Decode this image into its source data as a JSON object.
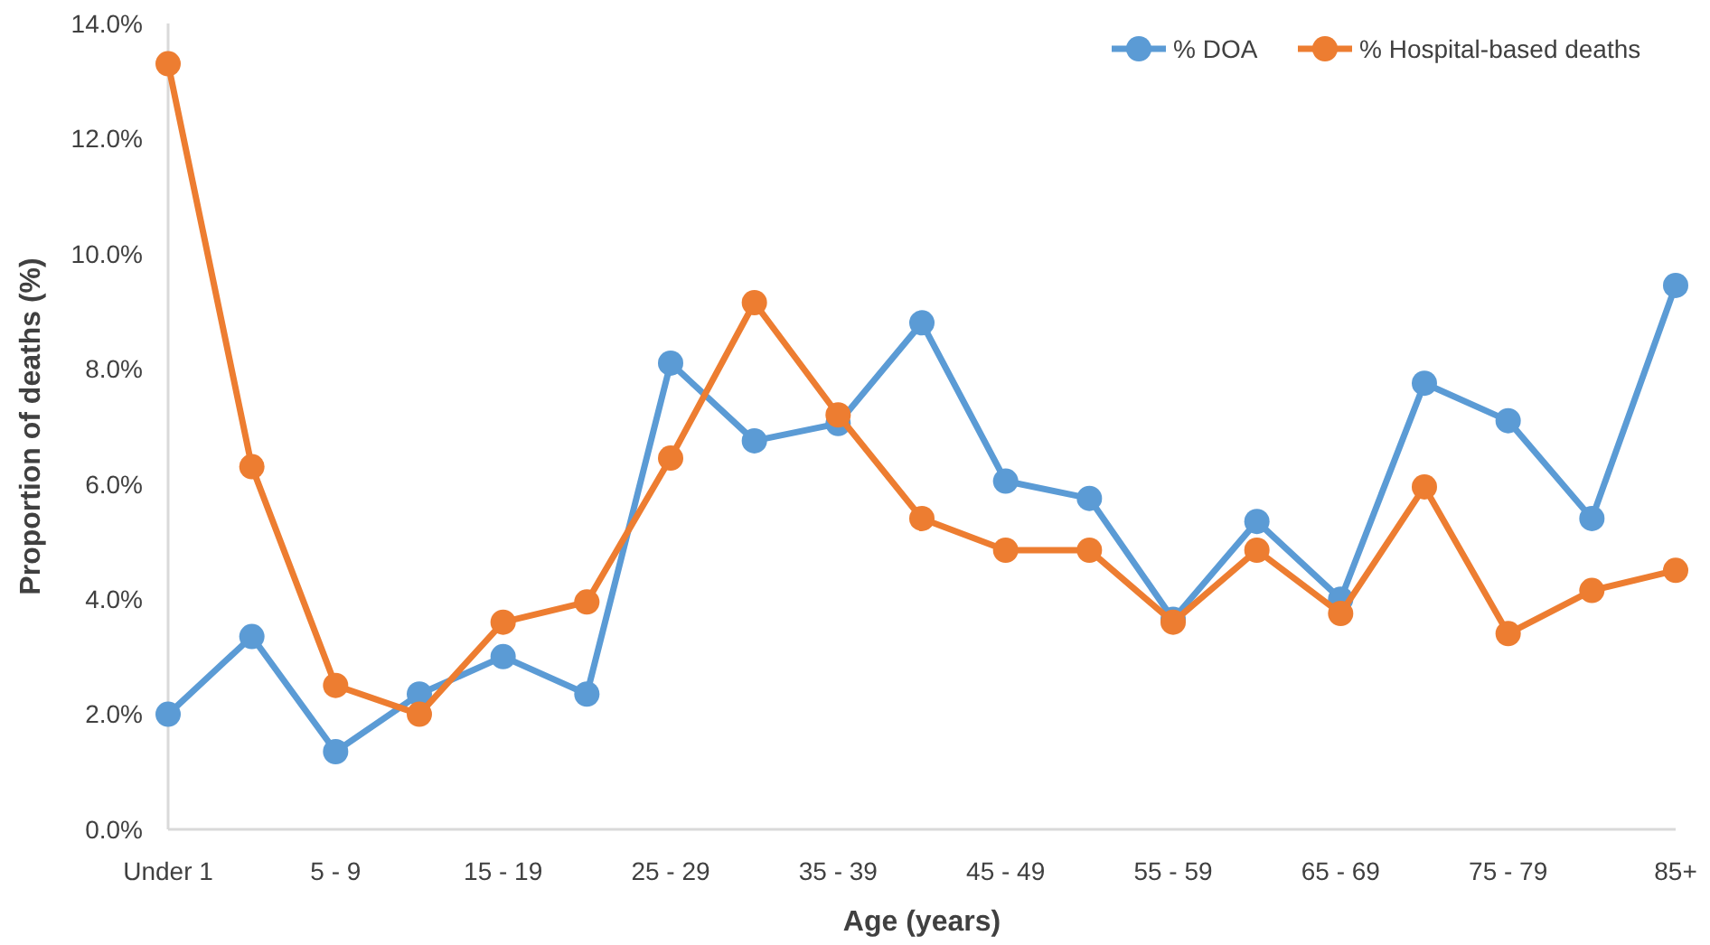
{
  "chart_data": {
    "type": "line",
    "xlabel": "Age (years)",
    "ylabel": "Proportion of deaths (%)",
    "categories": [
      "Under 1",
      null,
      "5 - 9",
      null,
      "15 - 19",
      null,
      "25 - 29",
      null,
      "35 - 39",
      null,
      "45 - 49",
      null,
      "55 - 59",
      null,
      "65 - 69",
      null,
      "75 - 79",
      null,
      "85+"
    ],
    "series": [
      {
        "name": "% DOA",
        "color": "#5b9bd5",
        "values": [
          2.0,
          3.35,
          1.35,
          2.35,
          3.0,
          2.35,
          8.1,
          6.75,
          7.05,
          8.8,
          6.05,
          5.75,
          3.65,
          5.35,
          4.0,
          7.75,
          7.1,
          5.4,
          9.45
        ]
      },
      {
        "name": "% Hospital-based deaths",
        "color": "#ed7d31",
        "values": [
          13.3,
          6.3,
          2.5,
          2.0,
          3.6,
          3.95,
          6.45,
          9.15,
          7.2,
          5.4,
          4.85,
          4.85,
          3.6,
          4.85,
          3.75,
          5.95,
          3.4,
          4.15,
          4.5
        ]
      }
    ],
    "ylim": [
      0,
      14
    ],
    "yticks": [
      {
        "value": 0,
        "label": "0.0%"
      },
      {
        "value": 2,
        "label": "2.0%"
      },
      {
        "value": 4,
        "label": "4.0%"
      },
      {
        "value": 6,
        "label": "6.0%"
      },
      {
        "value": 8,
        "label": "8.0%"
      },
      {
        "value": 10,
        "label": "10.0%"
      },
      {
        "value": 12,
        "label": "12.0%"
      },
      {
        "value": 14,
        "label": "14.0%"
      }
    ],
    "legend": "top right",
    "marker": "circle",
    "line_style": "solid"
  }
}
